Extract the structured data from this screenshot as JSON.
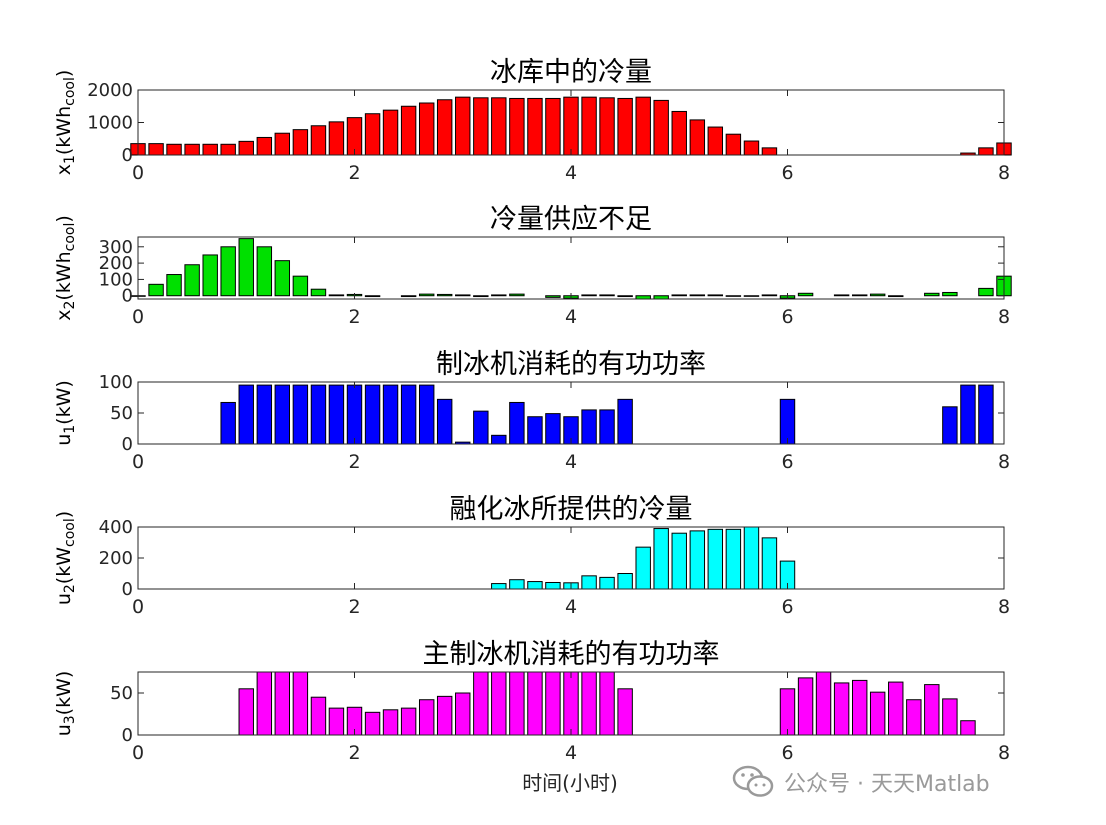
{
  "figure": {
    "x_label": "时间(小时)",
    "watermark": "公众号 · 天天Matlab",
    "watermark_icon": "wechat-icon"
  },
  "chart_data": [
    {
      "type": "bar",
      "title": "冰库中的冷量",
      "ylabel": {
        "main": "x",
        "sub": "1",
        "unit": "kWh",
        "unit_sub": "cool"
      },
      "color": "#ff0000",
      "xlim": [
        0,
        8
      ],
      "ylim": [
        0,
        2000
      ],
      "xticks": [
        0,
        2,
        4,
        6,
        8
      ],
      "yticks": [
        0,
        1000,
        2000
      ],
      "x": [
        0.0,
        0.167,
        0.333,
        0.5,
        0.667,
        0.833,
        1.0,
        1.167,
        1.333,
        1.5,
        1.667,
        1.833,
        2.0,
        2.167,
        2.333,
        2.5,
        2.667,
        2.833,
        3.0,
        3.167,
        3.333,
        3.5,
        3.667,
        3.833,
        4.0,
        4.167,
        4.333,
        4.5,
        4.667,
        4.833,
        5.0,
        5.167,
        5.333,
        5.5,
        5.667,
        5.833,
        7.667,
        7.833,
        8.0
      ],
      "values": [
        350,
        350,
        330,
        330,
        330,
        330,
        420,
        540,
        670,
        780,
        900,
        1020,
        1150,
        1270,
        1380,
        1500,
        1600,
        1700,
        1780,
        1760,
        1760,
        1740,
        1740,
        1740,
        1780,
        1780,
        1760,
        1740,
        1780,
        1680,
        1340,
        1080,
        860,
        640,
        430,
        220,
        60,
        220,
        370
      ]
    },
    {
      "type": "bar",
      "title": "冷量供应不足",
      "ylabel": {
        "main": "x",
        "sub": "2",
        "unit": "kWh",
        "unit_sub": "cool"
      },
      "color": "#00e000",
      "xlim": [
        0,
        8
      ],
      "ylim": [
        -20,
        360
      ],
      "xticks": [
        0,
        2,
        4,
        6,
        8
      ],
      "yticks": [
        0,
        100,
        200,
        300
      ],
      "x": [
        0.0,
        0.167,
        0.333,
        0.5,
        0.667,
        0.833,
        1.0,
        1.167,
        1.333,
        1.5,
        1.667,
        1.833,
        2.0,
        2.167,
        2.5,
        2.667,
        2.833,
        3.0,
        3.167,
        3.333,
        3.5,
        3.833,
        4.0,
        4.167,
        4.333,
        4.5,
        4.667,
        4.833,
        5.0,
        5.167,
        5.333,
        5.5,
        5.667,
        5.833,
        6.0,
        6.167,
        6.5,
        6.667,
        6.833,
        7.0,
        7.333,
        7.5,
        7.833,
        8.0
      ],
      "values": [
        0,
        70,
        130,
        190,
        250,
        300,
        350,
        300,
        215,
        120,
        40,
        5,
        8,
        -5,
        -5,
        10,
        8,
        5,
        -5,
        5,
        10,
        -10,
        -15,
        5,
        5,
        -5,
        -20,
        -20,
        5,
        5,
        5,
        0,
        0,
        5,
        -15,
        15,
        5,
        5,
        10,
        -5,
        15,
        20,
        45,
        120
      ]
    },
    {
      "type": "bar",
      "title": "制冰机消耗的有功功率",
      "ylabel": {
        "main": "u",
        "sub": "1",
        "unit": "kW",
        "unit_sub": ""
      },
      "color": "#0000ff",
      "xlim": [
        0,
        8
      ],
      "ylim": [
        0,
        100
      ],
      "xticks": [
        0,
        2,
        4,
        6,
        8
      ],
      "yticks": [
        0,
        50,
        100
      ],
      "x": [
        0.833,
        1.0,
        1.167,
        1.333,
        1.5,
        1.667,
        1.833,
        2.0,
        2.167,
        2.333,
        2.5,
        2.667,
        2.833,
        3.0,
        3.167,
        3.333,
        3.5,
        3.667,
        3.833,
        4.0,
        4.167,
        4.333,
        4.5,
        6.0,
        7.5,
        7.667,
        7.833
      ],
      "values": [
        67,
        95,
        95,
        95,
        95,
        95,
        95,
        95,
        95,
        95,
        95,
        95,
        72,
        3,
        53,
        14,
        67,
        44,
        49,
        44,
        55,
        55,
        72,
        72,
        60,
        95,
        95
      ]
    },
    {
      "type": "bar",
      "title": "融化冰所提供的冷量",
      "ylabel": {
        "main": "u",
        "sub": "2",
        "unit": "kW",
        "unit_sub": "cool"
      },
      "color": "#00ffff",
      "xlim": [
        0,
        8
      ],
      "ylim": [
        0,
        400
      ],
      "xticks": [
        0,
        2,
        4,
        6,
        8
      ],
      "yticks": [
        0,
        200,
        400
      ],
      "x": [
        3.333,
        3.5,
        3.667,
        3.833,
        4.0,
        4.167,
        4.333,
        4.5,
        4.667,
        4.833,
        5.0,
        5.167,
        5.333,
        5.5,
        5.667,
        5.833,
        6.0
      ],
      "values": [
        35,
        60,
        48,
        42,
        40,
        85,
        75,
        100,
        270,
        390,
        360,
        375,
        385,
        385,
        400,
        330,
        180
      ]
    },
    {
      "type": "bar",
      "title": "主制冰机消耗的有功功率",
      "ylabel": {
        "main": "u",
        "sub": "3",
        "unit": "kW",
        "unit_sub": ""
      },
      "color": "#ff00ff",
      "xlim": [
        0,
        8
      ],
      "ylim": [
        0,
        75
      ],
      "xticks": [
        0,
        2,
        4,
        6,
        8
      ],
      "yticks": [
        0,
        50
      ],
      "x": [
        1.0,
        1.167,
        1.333,
        1.5,
        1.667,
        1.833,
        2.0,
        2.167,
        2.333,
        2.5,
        2.667,
        2.833,
        3.0,
        3.167,
        3.333,
        3.5,
        3.667,
        3.833,
        4.0,
        4.167,
        4.333,
        4.5,
        6.0,
        6.167,
        6.333,
        6.5,
        6.667,
        6.833,
        7.0,
        7.167,
        7.333,
        7.5,
        7.667
      ],
      "values": [
        55,
        75,
        75,
        75,
        45,
        32,
        33,
        27,
        30,
        32,
        42,
        46,
        50,
        75,
        75,
        75,
        75,
        75,
        75,
        75,
        75,
        55,
        55,
        68,
        75,
        62,
        65,
        51,
        63,
        42,
        60,
        43,
        17
      ]
    }
  ]
}
